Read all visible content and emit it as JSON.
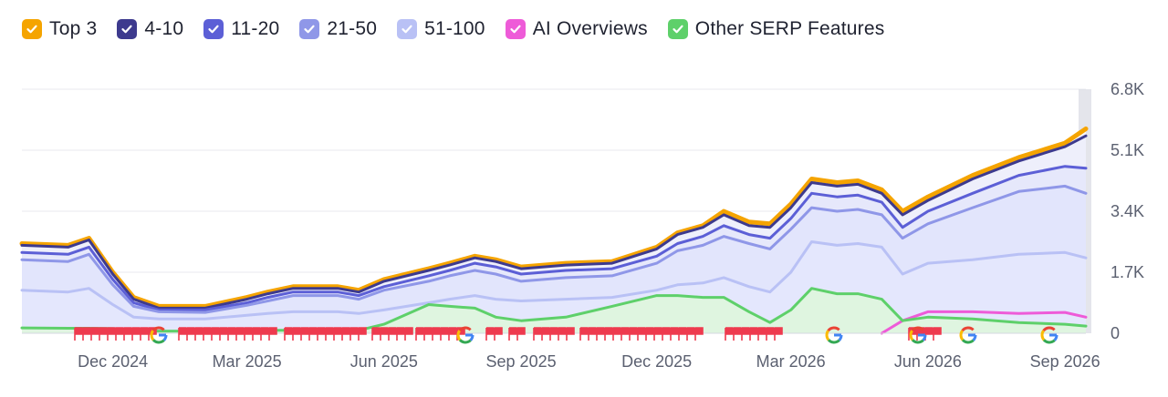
{
  "legend": {
    "items": [
      {
        "label": "Top 3",
        "color": "#f5a400",
        "checked": true
      },
      {
        "label": "4-10",
        "color": "#3d3a8e",
        "checked": true
      },
      {
        "label": "11-20",
        "color": "#5c5fd6",
        "checked": true
      },
      {
        "label": "21-50",
        "color": "#8f97e8",
        "checked": true
      },
      {
        "label": "51-100",
        "color": "#b9c1f5",
        "checked": true
      },
      {
        "label": "AI Overviews",
        "color": "#ee5bd8",
        "checked": true
      },
      {
        "label": "Other SERP Features",
        "color": "#5ed06a",
        "checked": true
      }
    ]
  },
  "chart_data": {
    "type": "area",
    "x": [
      "2024-10-01",
      "2024-11-01",
      "2024-11-15",
      "2024-12-01",
      "2024-12-15",
      "2025-01-01",
      "2025-02-01",
      "2025-03-01",
      "2025-03-15",
      "2025-04-01",
      "2025-05-01",
      "2025-05-15",
      "2025-06-01",
      "2025-07-01",
      "2025-07-15",
      "2025-08-01",
      "2025-08-15",
      "2025-09-01",
      "2025-10-01",
      "2025-11-01",
      "2025-12-01",
      "2025-12-15",
      "2026-01-01",
      "2026-01-15",
      "2026-02-01",
      "2026-02-15",
      "2026-03-01",
      "2026-03-15",
      "2026-04-01",
      "2026-04-15",
      "2026-05-01",
      "2026-05-15",
      "2026-06-01",
      "2026-07-01",
      "2026-08-01",
      "2026-09-01",
      "2026-09-15"
    ],
    "series": [
      {
        "name": "Top 3",
        "color": "#f5a400",
        "values": [
          2500,
          2450,
          2650,
          1700,
          1000,
          750,
          750,
          1000,
          1150,
          1300,
          1300,
          1200,
          1500,
          1800,
          1950,
          2150,
          2050,
          1850,
          1950,
          2000,
          2400,
          2800,
          3000,
          3400,
          3100,
          3050,
          3600,
          4300,
          4200,
          4250,
          4000,
          3400,
          3800,
          4400,
          4900,
          5300,
          5700
        ]
      },
      {
        "name": "4-10",
        "color": "#3d3a8e",
        "values": [
          2450,
          2400,
          2600,
          1650,
          950,
          700,
          700,
          950,
          1100,
          1250,
          1250,
          1150,
          1450,
          1750,
          1900,
          2100,
          2000,
          1800,
          1900,
          1950,
          2350,
          2750,
          2950,
          3300,
          3000,
          2950,
          3500,
          4200,
          4100,
          4150,
          3900,
          3300,
          3700,
          4300,
          4800,
          5200,
          5500
        ]
      },
      {
        "name": "11-20",
        "color": "#5c5fd6",
        "values": [
          2250,
          2200,
          2400,
          1500,
          850,
          650,
          650,
          850,
          1000,
          1150,
          1150,
          1050,
          1300,
          1600,
          1750,
          1950,
          1850,
          1650,
          1750,
          1800,
          2150,
          2500,
          2700,
          3000,
          2750,
          2650,
          3200,
          3900,
          3800,
          3850,
          3650,
          2950,
          3400,
          3900,
          4400,
          4650,
          4600
        ]
      },
      {
        "name": "21-50",
        "color": "#8f97e8",
        "values": [
          2050,
          2000,
          2200,
          1350,
          750,
          600,
          580,
          780,
          900,
          1050,
          1050,
          950,
          1200,
          1450,
          1600,
          1750,
          1650,
          1450,
          1550,
          1600,
          1950,
          2300,
          2450,
          2700,
          2500,
          2350,
          2900,
          3500,
          3400,
          3450,
          3300,
          2650,
          3050,
          3500,
          3950,
          4100,
          3900
        ]
      },
      {
        "name": "51-100",
        "color": "#b9c1f5",
        "values": [
          1200,
          1150,
          1250,
          800,
          450,
          400,
          400,
          500,
          550,
          600,
          600,
          550,
          650,
          850,
          950,
          1050,
          950,
          900,
          950,
          1000,
          1200,
          1350,
          1400,
          1550,
          1300,
          1150,
          1700,
          2550,
          2450,
          2500,
          2400,
          1650,
          1950,
          2050,
          2200,
          2250,
          2100
        ]
      },
      {
        "name": "AI Overviews",
        "color": "#ee5bd8",
        "values": [
          0,
          0,
          0,
          0,
          0,
          0,
          0,
          0,
          0,
          0,
          0,
          0,
          0,
          0,
          0,
          0,
          0,
          0,
          0,
          0,
          0,
          0,
          0,
          0,
          0,
          0,
          0,
          0,
          0,
          0,
          0,
          350,
          600,
          600,
          550,
          580,
          450
        ]
      },
      {
        "name": "Other SERP Features",
        "color": "#5ed06a",
        "values": [
          150,
          140,
          140,
          130,
          80,
          60,
          60,
          70,
          80,
          80,
          90,
          80,
          250,
          800,
          750,
          700,
          450,
          350,
          450,
          750,
          1050,
          1050,
          1000,
          1000,
          600,
          300,
          650,
          1250,
          1100,
          1100,
          950,
          350,
          450,
          400,
          300,
          250,
          200
        ]
      }
    ],
    "y_ticks": [
      "0",
      "1.7K",
      "3.4K",
      "5.1K",
      "6.8K"
    ],
    "ylim": [
      0,
      6800
    ],
    "x_ticks": [
      "Dec 2024",
      "Mar 2025",
      "Jun 2025",
      "Sep 2025",
      "Dec 2025",
      "Mar 2026",
      "Jun 2026",
      "Sep 2026"
    ],
    "grid": true
  }
}
